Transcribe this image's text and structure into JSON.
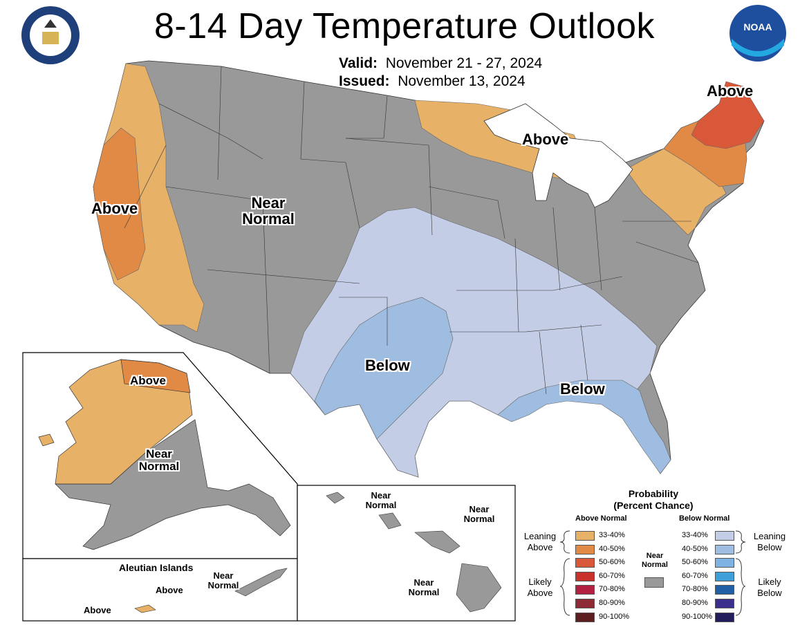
{
  "header": {
    "title": "8-14 Day Temperature Outlook",
    "valid_label": "Valid:",
    "valid_value": "November 21 - 27, 2024",
    "issued_label": "Issued:",
    "issued_value": "November 13, 2024",
    "seal_logo": "department-of-commerce-seal",
    "noaa_logo": "NOAA"
  },
  "map_labels": {
    "conus_west": "Above",
    "conus_near_1": "Near",
    "conus_near_2": "Normal",
    "conus_greatlakes": "Above",
    "conus_northeast": "Above",
    "conus_southplains": "Below",
    "conus_southeast": "Below",
    "alaska_above": "Above",
    "alaska_near_1": "Near",
    "alaska_near_2": "Normal",
    "aleutian_title": "Aleutian Islands",
    "aleutian_above_1": "Above",
    "aleutian_above_2": "Above",
    "aleutian_near_1": "Near",
    "aleutian_near_2": "Normal",
    "hawaii_a_1": "Near",
    "hawaii_a_2": "Normal",
    "hawaii_b_1": "Near",
    "hawaii_b_2": "Normal",
    "hawaii_c_1": "Near",
    "hawaii_c_2": "Normal"
  },
  "legend": {
    "title_1": "Probability",
    "title_2": "(Percent Chance)",
    "above_header": "Above Normal",
    "below_header": "Below Normal",
    "near_header_1": "Near",
    "near_header_2": "Normal",
    "leaning_above_1": "Leaning",
    "leaning_above_2": "Above",
    "likely_above_1": "Likely",
    "likely_above_2": "Above",
    "leaning_below_1": "Leaning",
    "leaning_below_2": "Below",
    "likely_below_1": "Likely",
    "likely_below_2": "Below",
    "above_bins": [
      {
        "label": "33-40%",
        "color": "#E8B168"
      },
      {
        "label": "40-50%",
        "color": "#E08A46"
      },
      {
        "label": "50-60%",
        "color": "#D9583A"
      },
      {
        "label": "60-70%",
        "color": "#C9312D"
      },
      {
        "label": "70-80%",
        "color": "#B22240"
      },
      {
        "label": "80-90%",
        "color": "#8E2A33"
      },
      {
        "label": "90-100%",
        "color": "#5C1E1E"
      }
    ],
    "below_bins": [
      {
        "label": "33-40%",
        "color": "#C3CDE6"
      },
      {
        "label": "40-50%",
        "color": "#9EBDE0"
      },
      {
        "label": "50-60%",
        "color": "#7FB3E3"
      },
      {
        "label": "60-70%",
        "color": "#3E9FD9"
      },
      {
        "label": "70-80%",
        "color": "#1F5FA6"
      },
      {
        "label": "80-90%",
        "color": "#3A2F8C"
      },
      {
        "label": "90-100%",
        "color": "#221B5C"
      }
    ],
    "near_normal_color": "#999999"
  }
}
